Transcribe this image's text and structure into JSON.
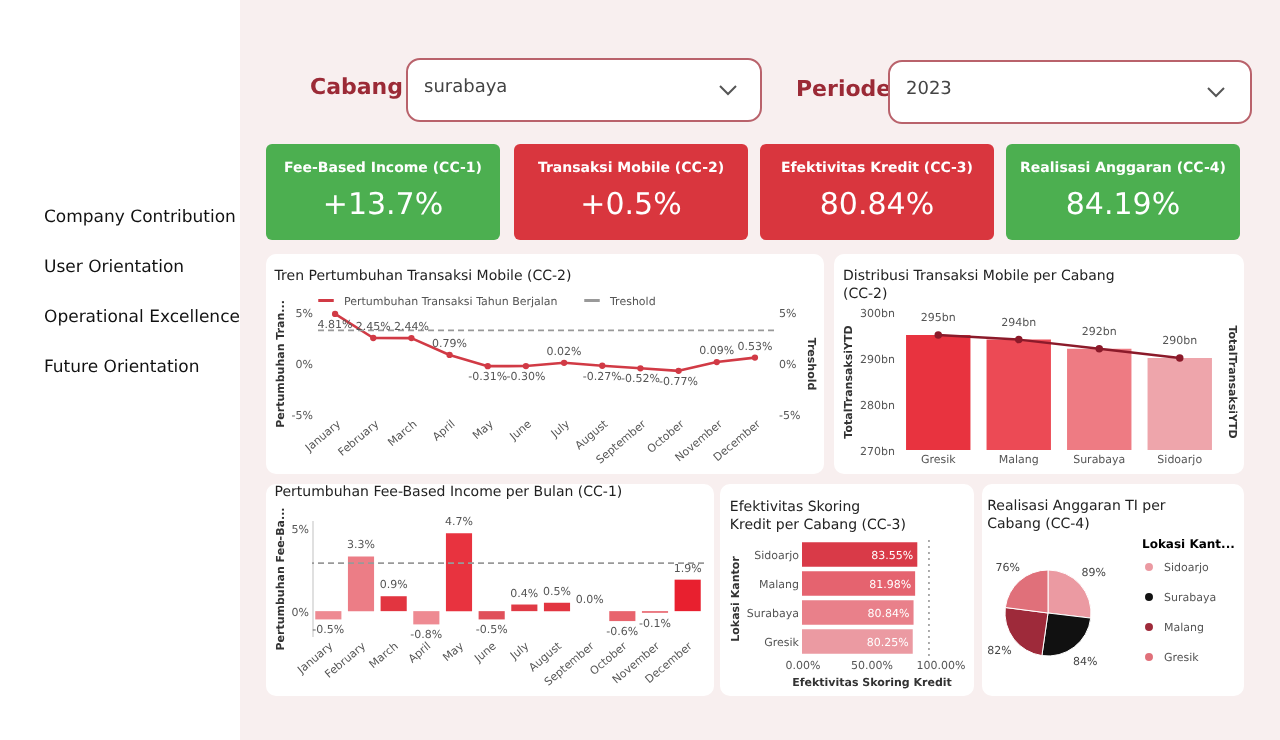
{
  "chart_data": [
    {
      "type": "other",
      "annotations": [
        "Cabang",
        "surabaya",
        "Periode",
        "2023",
        "Company Contribution",
        "User Orientation",
        "Operational Excellence",
        "Future Orientation"
      ]
    },
    {
      "type": "other",
      "categories": [
        "Fee-Based Income (CC-1)",
        "Transaksi Mobile (CC-2)",
        "Efektivitas Kredit (CC-3)",
        "Realisasi Anggaran (CC-4)"
      ],
      "values": [
        13.7,
        0.5,
        80.84,
        84.19
      ],
      "value_labels": [
        "+13.7%",
        "+0.5%",
        "80.84%",
        "84.19%"
      ],
      "colors": [
        "#4caf50",
        "#d9363e",
        "#d9363e",
        "#4caf50"
      ]
    },
    {
      "type": "line",
      "title": "Tren Pertumbuhan Transaksi Mobile (CC-2)",
      "ylabel": "Pertumbuhan Tran...",
      "y2label": "Treshold",
      "categories": [
        "January",
        "February",
        "March",
        "April",
        "May",
        "June",
        "July",
        "August",
        "September",
        "October",
        "November",
        "December"
      ],
      "series": [
        {
          "name": "Pertumbuhan Transaksi Tahun Berjalan",
          "color": "#d13a45",
          "values": [
            4.81,
            2.45,
            2.44,
            0.79,
            -0.31,
            -0.3,
            0.02,
            -0.27,
            -0.52,
            -0.77,
            0.09,
            0.53
          ],
          "value_labels": [
            "4.81%",
            "2.45%",
            "2.44%",
            "0.79%",
            "-0.31%",
            "-0.30%",
            "0.02%",
            "-0.27%",
            "-0.52%",
            "-0.77%",
            "0.09%",
            "0.53%"
          ]
        }
      ],
      "ylim": [
        -5,
        5
      ],
      "yticks": [
        {
          "value": -5,
          "label": "-5%"
        },
        {
          "value": 0,
          "label": "0%"
        },
        {
          "value": 5,
          "label": "5%"
        }
      ],
      "y2lim": [
        -5,
        5
      ],
      "y2ticks": [
        {
          "value": -5,
          "label": "-5%"
        },
        {
          "value": 0,
          "label": "0%"
        },
        {
          "value": 5,
          "label": "5%"
        }
      ],
      "ref_lines": [
        {
          "axis": "y",
          "value": 3.2,
          "label": "Treshold",
          "color": "#999999",
          "line_style": "dashed"
        }
      ],
      "legend": "top",
      "marker": "circle",
      "line_style": "solid"
    },
    {
      "type": "bar",
      "title": "Distribusi Transaksi Mobile per Cabang (CC-2)",
      "ylabel": "TotalTransaksiYTD",
      "y2label": "TotalTransaksiYTD",
      "categories": [
        "Gresik",
        "Malang",
        "Surabaya",
        "Sidoarjo"
      ],
      "series": [
        {
          "type": "bar",
          "colors": [
            "#e8333f",
            "#ec4a55",
            "#ee7b83",
            "#eea5ab"
          ],
          "values": [
            295,
            294,
            292,
            290
          ]
        },
        {
          "type": "line",
          "color": "#8b1a2a",
          "values": [
            295,
            294,
            292,
            290
          ],
          "value_labels": [
            "295bn",
            "294bn",
            "292bn",
            "290bn"
          ]
        }
      ],
      "ylim": [
        270,
        300
      ],
      "yticks": [
        {
          "value": 270,
          "label": "270bn"
        },
        {
          "value": 280,
          "label": "280bn"
        },
        {
          "value": 290,
          "label": "290bn"
        },
        {
          "value": 300,
          "label": "300bn"
        }
      ],
      "marker": "circle"
    },
    {
      "type": "bar",
      "title": "Pertumbuhan Fee-Based Income per Bulan (CC-1)",
      "ylabel": "Pertumbuhan Fee-Ba...",
      "categories": [
        "January",
        "February",
        "March",
        "April",
        "May",
        "June",
        "July",
        "August",
        "September",
        "October",
        "November",
        "December"
      ],
      "values": [
        -0.5,
        3.3,
        0.9,
        -0.8,
        4.7,
        -0.5,
        0.4,
        0.5,
        0.0,
        -0.6,
        -0.1,
        1.9
      ],
      "value_labels": [
        "-0.5%",
        "3.3%",
        "0.9%",
        "-0.8%",
        "4.7%",
        "-0.5%",
        "0.4%",
        "0.5%",
        "0.0%",
        "-0.6%",
        "-0.1%",
        "1.9%"
      ],
      "colors": [
        "#ee8a92",
        "#ec7d86",
        "#e23540",
        "#ee8a92",
        "#e8333f",
        "#e0505a",
        "#e03a45",
        "#e23540",
        "#f2b0b5",
        "#e8646d",
        "#e8646d",
        "#e8202f"
      ],
      "ylim": [
        -1.5,
        5.5
      ],
      "yticks": [
        {
          "value": 0,
          "label": "0%"
        },
        {
          "value": 5,
          "label": "5%"
        }
      ],
      "ref_lines": [
        {
          "axis": "y",
          "value": 2.9,
          "color": "#999999",
          "line_style": "dashed"
        }
      ]
    },
    {
      "type": "bar",
      "orientation": "horizontal",
      "title": "Efektivitas Skoring Kredit per Cabang (CC-3)",
      "xlabel": "Efektivitas Skoring Kredit",
      "ylabel": "Lokasi Kantor",
      "categories": [
        "Sidoarjo",
        "Malang",
        "Surabaya",
        "Gresik"
      ],
      "values": [
        83.55,
        81.98,
        80.84,
        80.25
      ],
      "value_labels": [
        "83.55%",
        "81.98%",
        "80.84%",
        "80.25%"
      ],
      "colors": [
        "#d93a48",
        "#e5636f",
        "#e9808a",
        "#eb9aa2"
      ],
      "xlim": [
        0,
        100
      ],
      "xticks": [
        {
          "value": 0,
          "label": "0.00%"
        },
        {
          "value": 50,
          "label": "50.00%"
        },
        {
          "value": 100,
          "label": "100.00%"
        }
      ],
      "ref_lines": [
        {
          "axis": "x",
          "value": 92,
          "color": "#999999",
          "line_style": "dotted"
        }
      ]
    },
    {
      "type": "pie",
      "title": "Realisasi Anggaran TI per Cabang (CC-4)",
      "legend_title": "Lokasi Kant...",
      "categories": [
        "Sidoarjo",
        "Surabaya",
        "Malang",
        "Gresik"
      ],
      "values": [
        89,
        84,
        82,
        76
      ],
      "value_labels": [
        "89%",
        "84%",
        "82%",
        "76%"
      ],
      "colors": [
        "#eb9aa2",
        "#111111",
        "#9e2a3a",
        "#e0707a"
      ],
      "legend": "right"
    }
  ]
}
